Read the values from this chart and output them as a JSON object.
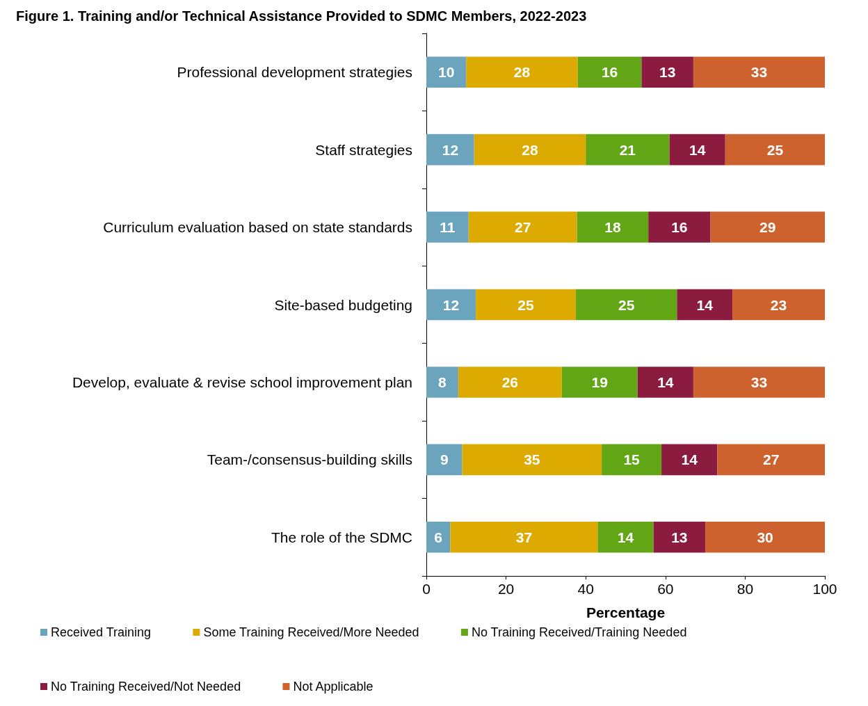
{
  "chart_data": {
    "type": "bar",
    "orientation": "horizontal",
    "stacked": true,
    "title": "Figure 1. Training and/or Technical Assistance Provided to SDMC Members, 2022-2023",
    "xlabel": "Percentage",
    "categories": [
      "Professional development strategies",
      "Staff strategies",
      "Curriculum evaluation based on state standards",
      "Site-based budgeting",
      "Develop, evaluate & revise school improvement plan",
      "Team-/consensus-building skills",
      "The role of the SDMC"
    ],
    "series": [
      {
        "name": "Received Training",
        "color": "#6aa5bd",
        "values": [
          10,
          12,
          10.6,
          12.4,
          8,
          9,
          6
        ],
        "value_labels": [
          "10",
          "12",
          "11",
          "12",
          "8",
          "9",
          "6"
        ]
      },
      {
        "name": "Some Training Received/More Needed",
        "color": "#dcaa00",
        "values": [
          28,
          28,
          27.2,
          25.1,
          26,
          35,
          37
        ],
        "value_labels": [
          "28",
          "28",
          "27",
          "25",
          "26",
          "35",
          "37"
        ]
      },
      {
        "name": "No Training Received/Training Needed",
        "color": "#62a616",
        "values": [
          16,
          21,
          17.9,
          25.4,
          19,
          15,
          14
        ],
        "value_labels": [
          "16",
          "21",
          "18",
          "25",
          "19",
          "15",
          "14"
        ]
      },
      {
        "name": "No Training Received/Not Needed",
        "color": "#8b1c40",
        "values": [
          13,
          14,
          15.6,
          13.9,
          14,
          14,
          13
        ],
        "value_labels": [
          "13",
          "14",
          "16",
          "14",
          "14",
          "14",
          "13"
        ]
      },
      {
        "name": "Not Applicable",
        "color": "#cd622f",
        "values": [
          33,
          25,
          28.7,
          23.2,
          33,
          27,
          30
        ],
        "value_labels": [
          "33",
          "25",
          "29",
          "23",
          "33",
          "27",
          "30"
        ]
      }
    ],
    "xlim": [
      0,
      100
    ],
    "xticks": [
      0,
      20,
      40,
      60,
      80,
      100
    ],
    "grid": false,
    "legend": "bottom"
  }
}
